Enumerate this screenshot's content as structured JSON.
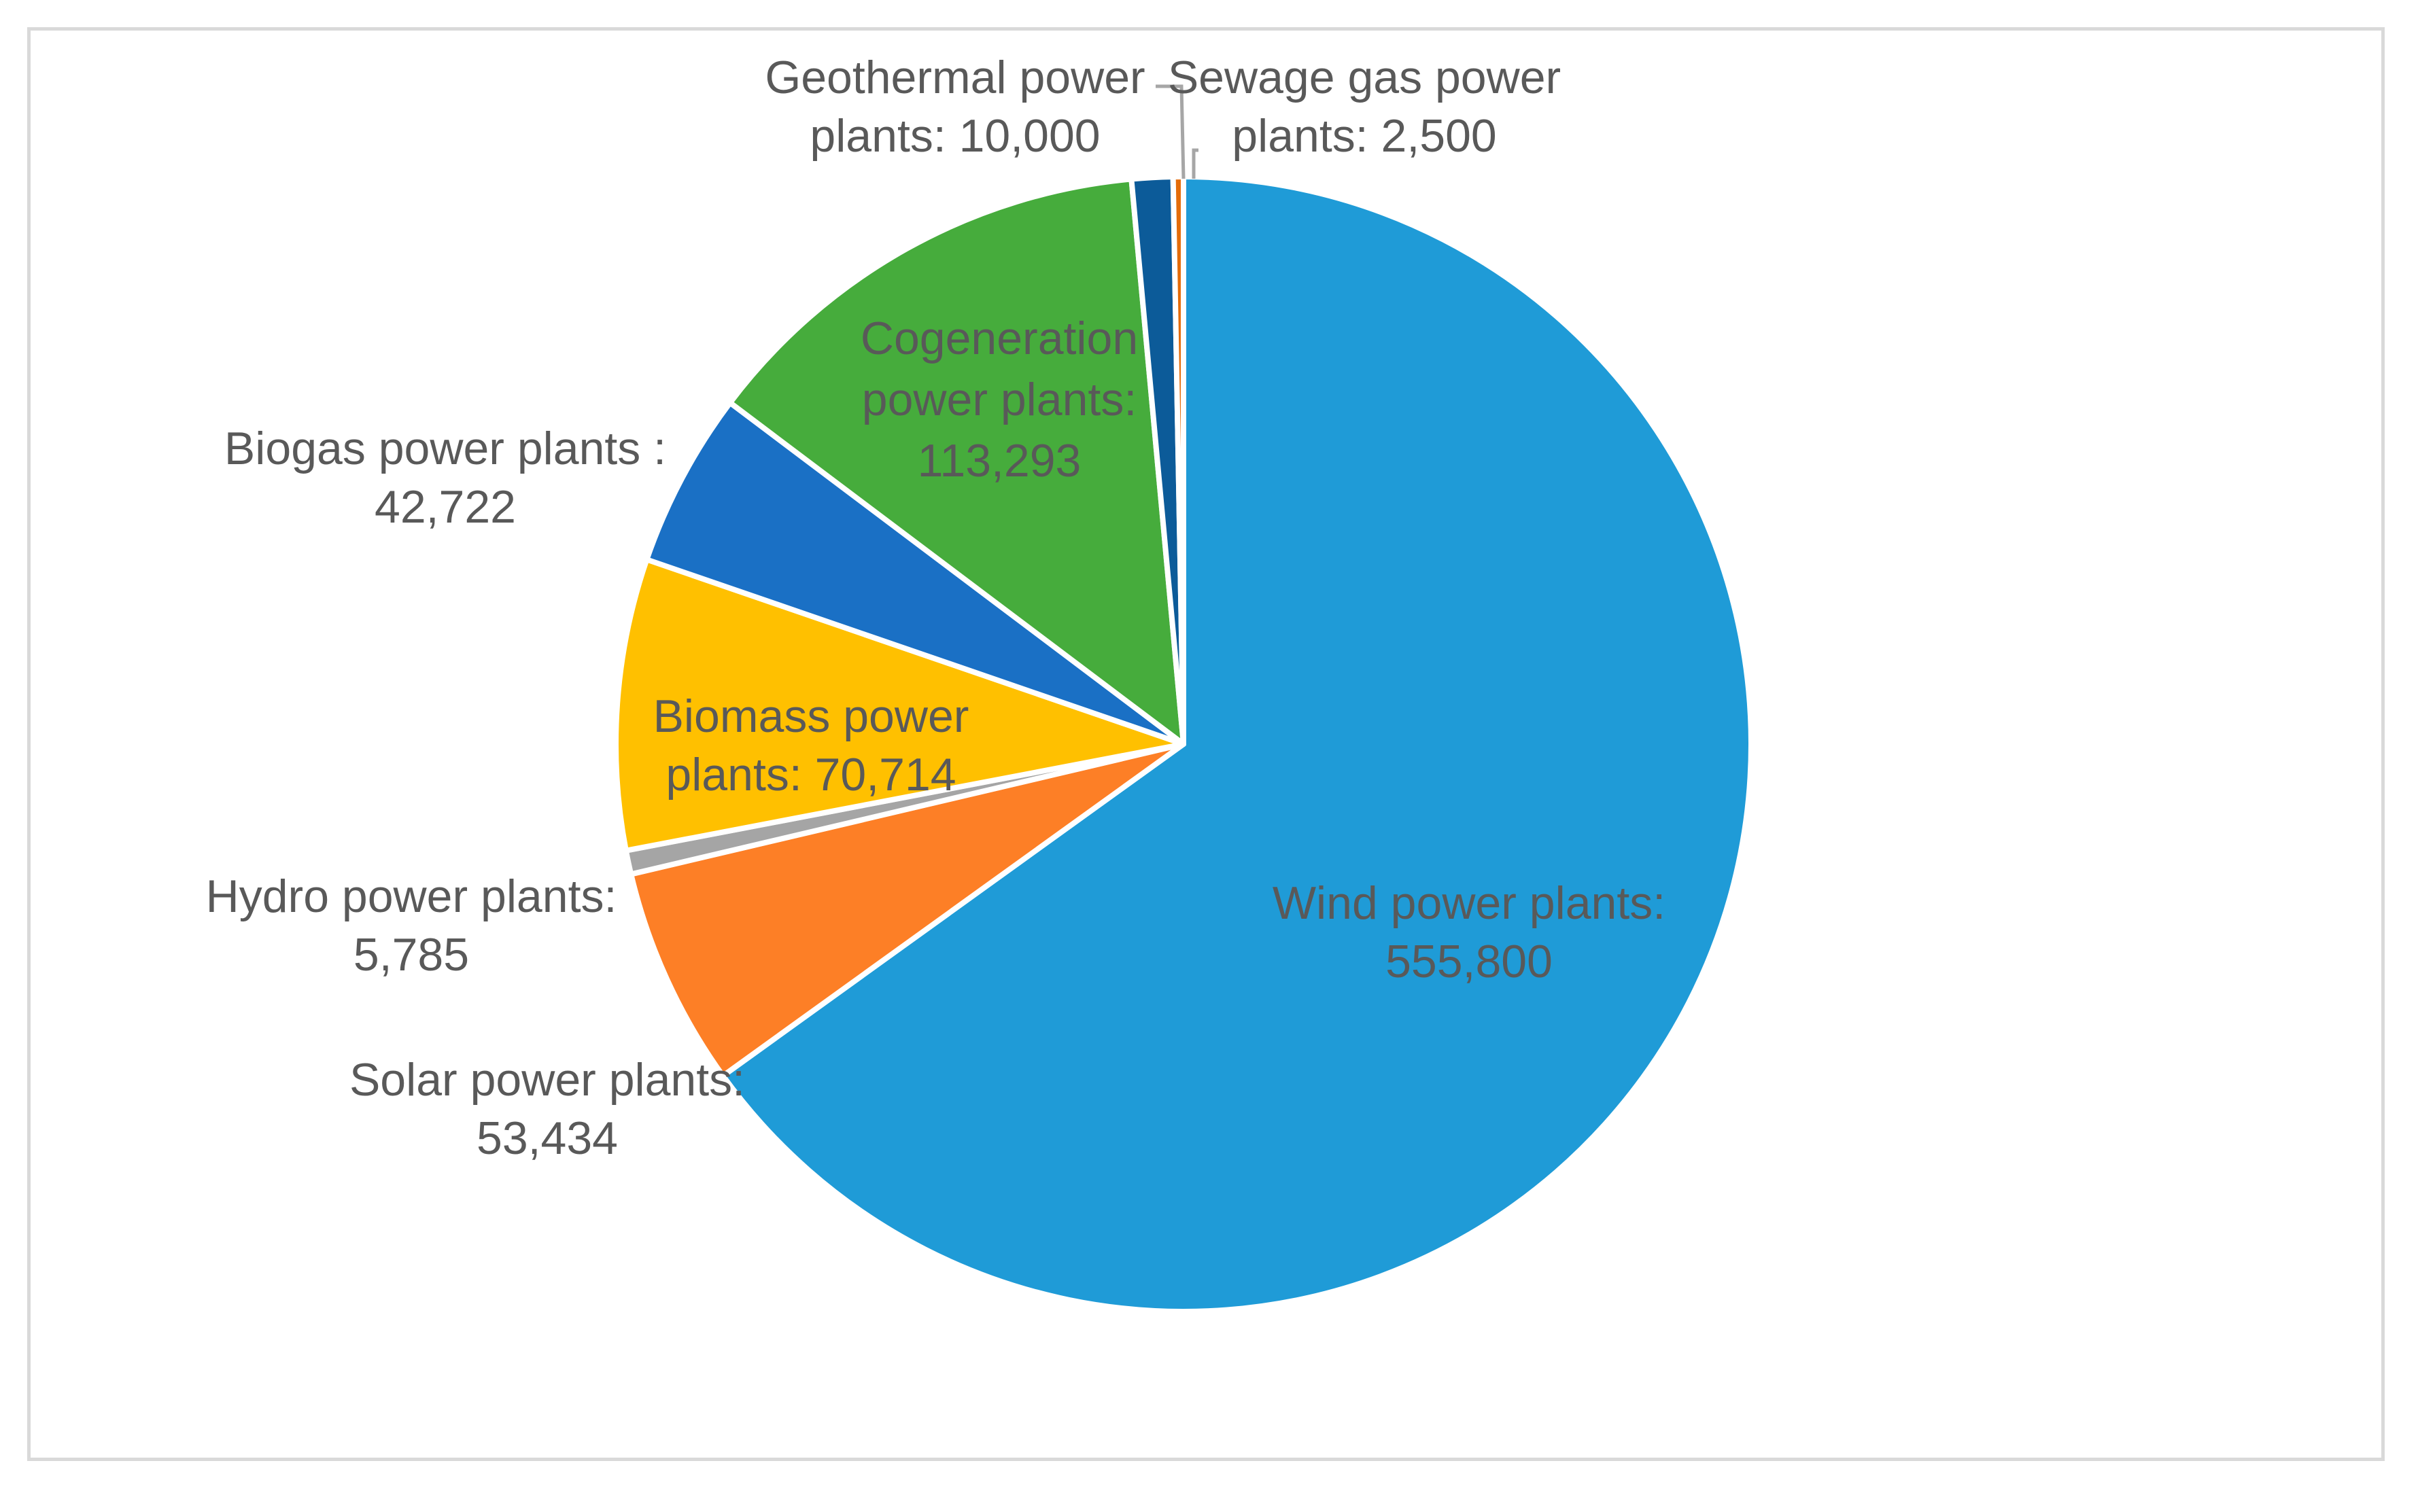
{
  "chart_data": {
    "type": "pie",
    "start_angle_deg": 0,
    "direction": "clockwise",
    "slices": [
      {
        "name": "Wind power plants",
        "label": "Wind power plants:",
        "value": 555800,
        "value_label": "555,800",
        "color": "#1f9bd7",
        "label_color": "#595959"
      },
      {
        "name": "Solar power plants",
        "label": "Solar power plants:",
        "value": 53434,
        "value_label": "53,434",
        "color": "#fd7f26",
        "label_color": "#595959"
      },
      {
        "name": "Hydro power plants",
        "label": "Hydro power plants:",
        "value": 5785,
        "value_label": "5,785",
        "color": "#a5a5a5",
        "label_color": "#595959"
      },
      {
        "name": "Biomass power plants",
        "label": "Biomass power plants: 70,714",
        "value": 70714,
        "value_label": "70,714",
        "color": "#ffc000",
        "label_color": "#595959"
      },
      {
        "name": "Biogas power plants",
        "label": "Biogas power plants :",
        "value": 42722,
        "value_label": "42,722",
        "color": "#1a70c5",
        "label_color": "#595959"
      },
      {
        "name": "Cogeneration power plants",
        "label": "Cogeneration power plants:",
        "value": 113293,
        "value_label": "113,293",
        "color": "#46ac3c",
        "label_color": "#595959"
      },
      {
        "name": "Geothermal power plants",
        "label": "Geothermal power plants: 10,000",
        "value": 10000,
        "value_label": "10,000",
        "color": "#0c5b99",
        "label_color": "#595959"
      },
      {
        "name": "Sewage gas power plants",
        "label": "Sewage gas power plants: 2,500",
        "value": 2500,
        "value_label": "2,500",
        "color": "#e46c0a",
        "label_color": "#595959"
      }
    ]
  },
  "labels": [
    {
      "lines": [
        "Wind power plants:",
        "555,800"
      ]
    },
    {
      "lines": [
        "Solar power plants:",
        "53,434"
      ]
    },
    {
      "lines": [
        "Hydro power plants:",
        "5,785"
      ]
    },
    {
      "lines": [
        "Biomass power",
        "plants: 70,714"
      ]
    },
    {
      "lines": [
        "Biogas power plants :",
        "42,722"
      ]
    },
    {
      "lines": [
        "Cogeneration",
        "power plants:",
        "113,293"
      ]
    },
    {
      "lines": [
        "Geothermal power",
        "plants: 10,000"
      ]
    },
    {
      "lines": [
        "Sewage gas power",
        "plants: 2,500"
      ]
    }
  ],
  "colors": {
    "border": "#d9d9d9",
    "leader_line": "#a6a6a6",
    "slice_separator": "#ffffff"
  }
}
